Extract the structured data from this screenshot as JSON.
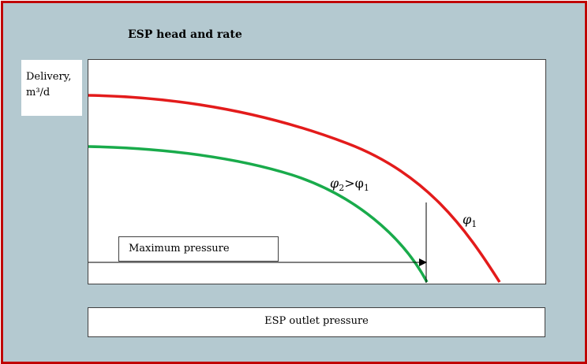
{
  "chart_data": {
    "type": "line",
    "title": "ESP head and rate",
    "ylabel": "Delivery,",
    "ylabel_unit": "m³/d",
    "xlabel": "ESP outlet pressure",
    "grid": false,
    "series": [
      {
        "name": "φ1",
        "color": "#e31b1b"
      },
      {
        "name": "φ2",
        "color": "#19ab4b"
      }
    ],
    "annotations": {
      "max_pressure_label": "Maximum pressure",
      "phi1_label": {
        "sym": "φ",
        "sub": "1"
      },
      "phi2_label": {
        "sym": "φ",
        "sub": "2",
        "op": ">",
        "ref": "φ",
        "ref_sub": "1"
      }
    }
  },
  "frame": {
    "border_color": "#c00000",
    "background": "#b4c9d0"
  }
}
